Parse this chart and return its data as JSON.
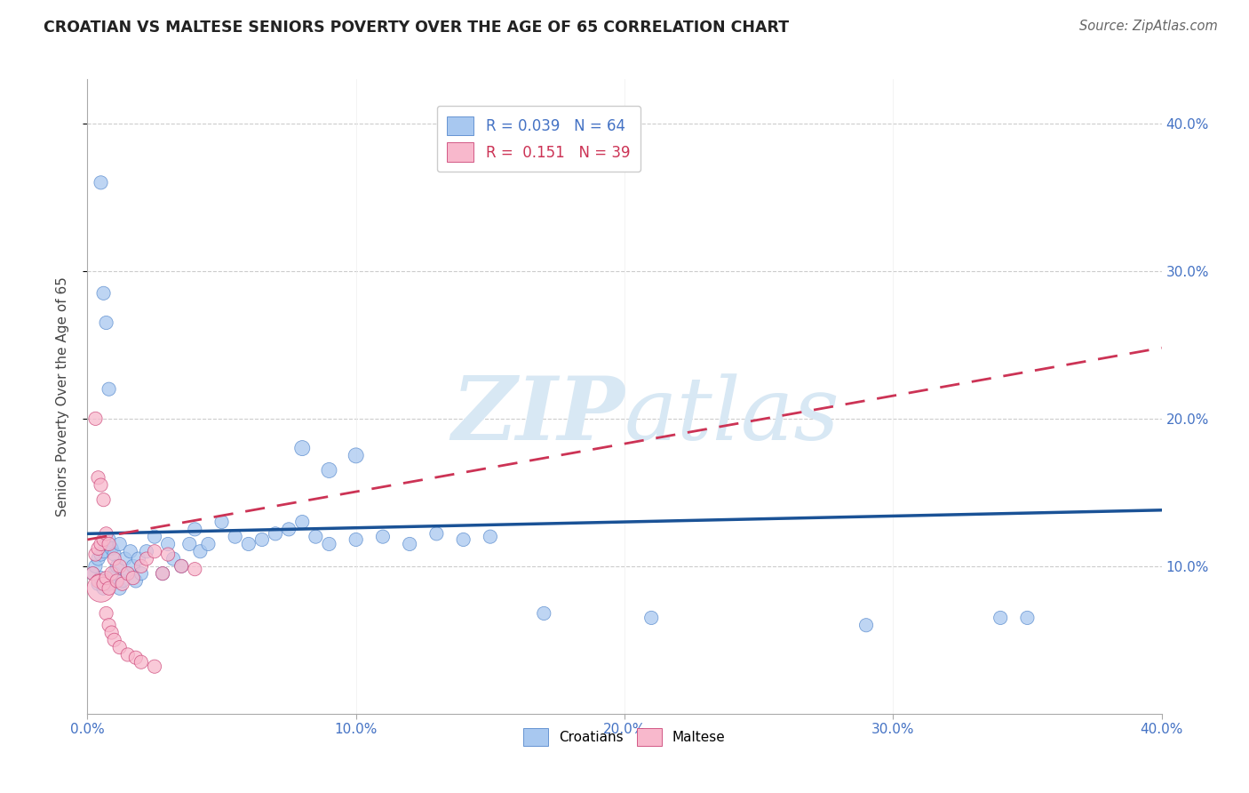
{
  "title": "CROATIAN VS MALTESE SENIORS POVERTY OVER THE AGE OF 65 CORRELATION CHART",
  "source": "Source: ZipAtlas.com",
  "ylabel": "Seniors Poverty Over the Age of 65",
  "xlim": [
    0.0,
    0.4
  ],
  "ylim": [
    0.0,
    0.43
  ],
  "xtick_vals": [
    0.0,
    0.1,
    0.2,
    0.3,
    0.4
  ],
  "xtick_labels": [
    "0.0%",
    "10.0%",
    "20.0%",
    "30.0%",
    "40.0%"
  ],
  "ytick_vals": [
    0.1,
    0.2,
    0.3,
    0.4
  ],
  "ytick_labels": [
    "10.0%",
    "20.0%",
    "30.0%",
    "40.0%"
  ],
  "croatian_R": 0.039,
  "croatian_N": 64,
  "maltese_R": 0.151,
  "maltese_N": 39,
  "croatian_dot_color": "#a8c8f0",
  "croatian_edge_color": "#5588cc",
  "maltese_dot_color": "#f8b8cc",
  "maltese_edge_color": "#cc4477",
  "trendline_croatian_color": "#1a5296",
  "trendline_maltese_color": "#cc3355",
  "axis_label_color": "#4472c4",
  "ylabel_color": "#444444",
  "title_color": "#222222",
  "source_color": "#666666",
  "grid_color": "#cccccc",
  "watermark_color": "#d8e8f4",
  "legend_border_color": "#cccccc",
  "cro_trend_y0": 0.122,
  "cro_trend_y1": 0.138,
  "malt_trend_y0": 0.118,
  "malt_trend_y1": 0.248,
  "croatian_x": [
    0.002,
    0.003,
    0.004,
    0.004,
    0.005,
    0.005,
    0.006,
    0.006,
    0.007,
    0.007,
    0.008,
    0.008,
    0.009,
    0.009,
    0.01,
    0.01,
    0.011,
    0.012,
    0.012,
    0.013,
    0.014,
    0.015,
    0.016,
    0.017,
    0.018,
    0.019,
    0.02,
    0.022,
    0.025,
    0.028,
    0.03,
    0.032,
    0.035,
    0.038,
    0.04,
    0.042,
    0.045,
    0.05,
    0.055,
    0.06,
    0.065,
    0.07,
    0.075,
    0.08,
    0.085,
    0.09,
    0.1,
    0.11,
    0.12,
    0.13,
    0.14,
    0.15,
    0.08,
    0.09,
    0.1,
    0.17,
    0.21,
    0.29,
    0.34,
    0.35,
    0.005,
    0.006,
    0.007,
    0.008
  ],
  "croatian_y": [
    0.095,
    0.1,
    0.088,
    0.105,
    0.092,
    0.108,
    0.085,
    0.11,
    0.09,
    0.115,
    0.088,
    0.118,
    0.092,
    0.112,
    0.095,
    0.108,
    0.1,
    0.085,
    0.115,
    0.09,
    0.105,
    0.095,
    0.11,
    0.1,
    0.09,
    0.105,
    0.095,
    0.11,
    0.12,
    0.095,
    0.115,
    0.105,
    0.1,
    0.115,
    0.125,
    0.11,
    0.115,
    0.13,
    0.12,
    0.115,
    0.118,
    0.122,
    0.125,
    0.13,
    0.12,
    0.115,
    0.118,
    0.12,
    0.115,
    0.122,
    0.118,
    0.12,
    0.18,
    0.165,
    0.175,
    0.068,
    0.065,
    0.06,
    0.065,
    0.065,
    0.36,
    0.285,
    0.265,
    0.22
  ],
  "croatian_sizes": [
    120,
    120,
    120,
    120,
    120,
    120,
    120,
    120,
    120,
    120,
    120,
    120,
    120,
    120,
    120,
    120,
    120,
    120,
    120,
    120,
    120,
    120,
    120,
    120,
    120,
    120,
    120,
    120,
    120,
    120,
    120,
    120,
    120,
    120,
    120,
    120,
    120,
    120,
    120,
    120,
    120,
    120,
    120,
    120,
    120,
    120,
    120,
    120,
    120,
    120,
    120,
    120,
    150,
    150,
    150,
    120,
    120,
    120,
    120,
    120,
    120,
    120,
    120,
    120
  ],
  "maltese_x": [
    0.002,
    0.003,
    0.004,
    0.004,
    0.005,
    0.005,
    0.006,
    0.006,
    0.007,
    0.007,
    0.008,
    0.008,
    0.009,
    0.01,
    0.011,
    0.012,
    0.013,
    0.015,
    0.017,
    0.02,
    0.022,
    0.025,
    0.028,
    0.03,
    0.035,
    0.04,
    0.003,
    0.004,
    0.005,
    0.006,
    0.007,
    0.008,
    0.009,
    0.01,
    0.012,
    0.015,
    0.018,
    0.02,
    0.025
  ],
  "maltese_y": [
    0.095,
    0.108,
    0.09,
    0.112,
    0.085,
    0.115,
    0.088,
    0.118,
    0.092,
    0.122,
    0.085,
    0.115,
    0.095,
    0.105,
    0.09,
    0.1,
    0.088,
    0.095,
    0.092,
    0.1,
    0.105,
    0.11,
    0.095,
    0.108,
    0.1,
    0.098,
    0.2,
    0.16,
    0.155,
    0.145,
    0.068,
    0.06,
    0.055,
    0.05,
    0.045,
    0.04,
    0.038,
    0.035,
    0.032
  ],
  "maltese_sizes": [
    120,
    120,
    120,
    120,
    500,
    120,
    120,
    120,
    120,
    120,
    120,
    120,
    120,
    120,
    120,
    120,
    120,
    120,
    120,
    120,
    120,
    120,
    120,
    120,
    120,
    120,
    120,
    120,
    120,
    120,
    120,
    120,
    120,
    120,
    120,
    120,
    120,
    120,
    120
  ]
}
